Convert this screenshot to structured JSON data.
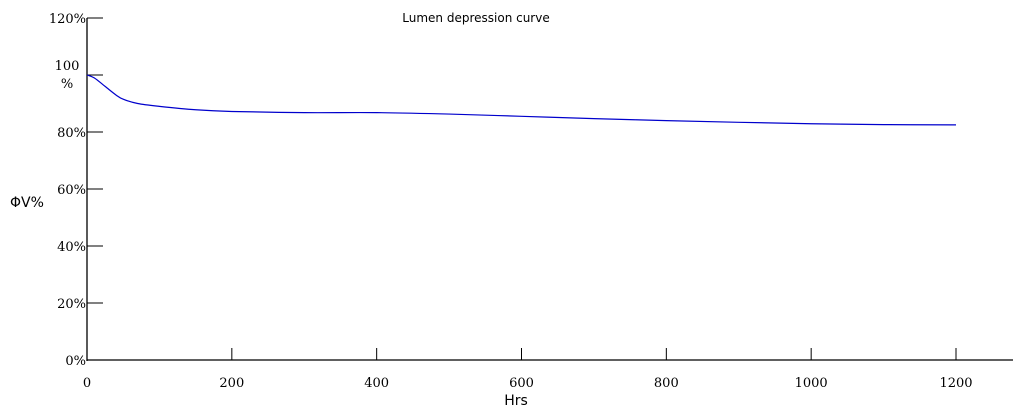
{
  "chart_data": {
    "type": "line",
    "title": "Lumen depression curve",
    "xlabel": "Hrs",
    "ylabel": "ΦV%",
    "xlim": [
      0,
      1200
    ],
    "ylim": [
      0,
      120
    ],
    "x_ticks": [
      "0",
      "200",
      "400",
      "600",
      "800",
      "1000",
      "1200"
    ],
    "x_tick_values": [
      0,
      200,
      400,
      600,
      800,
      1000,
      1200
    ],
    "y_ticks": [
      {
        "value": 0,
        "label": "0%"
      },
      {
        "value": 20,
        "label": "20%"
      },
      {
        "value": 40,
        "label": "40%"
      },
      {
        "value": 60,
        "label": "60%"
      },
      {
        "value": 80,
        "label": "80%"
      },
      {
        "value": 100,
        "label": "100",
        "label_line2": "%"
      },
      {
        "value": 120,
        "label": "120%"
      }
    ],
    "grid": false,
    "line_color": "#0000cc",
    "series": [
      {
        "x": [
          0,
          10,
          25,
          40,
          50,
          70,
          100,
          150,
          200,
          300,
          400,
          500,
          600,
          700,
          800,
          900,
          1000,
          1100,
          1200
        ],
        "values": [
          100,
          99,
          96,
          93,
          91.5,
          90,
          89,
          87.8,
          87.2,
          86.8,
          86.8,
          86.3,
          85.5,
          84.7,
          84,
          83.4,
          82.9,
          82.6,
          82.5
        ]
      }
    ]
  }
}
